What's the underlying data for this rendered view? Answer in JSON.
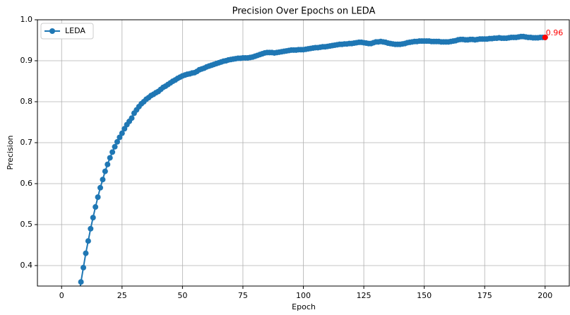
{
  "chart_data": {
    "type": "line",
    "title": "Precision Over Epochs on LEDA",
    "xlabel": "Epoch",
    "ylabel": "Precision",
    "xlim": [
      -10,
      210
    ],
    "ylim": [
      0.35,
      1.0
    ],
    "xticks": [
      0,
      25,
      50,
      75,
      100,
      125,
      150,
      175,
      200
    ],
    "yticks": [
      0.4,
      0.5,
      0.6,
      0.7,
      0.8,
      0.9,
      {
        "value": 1,
        "label": "1.0"
      }
    ],
    "grid": true,
    "legend": "upper left",
    "x": [
      7,
      8,
      9,
      10,
      11,
      12,
      13,
      14,
      15,
      16,
      17,
      18,
      19,
      20,
      21,
      22,
      23,
      24,
      25,
      26,
      27,
      28,
      29,
      30,
      31,
      32,
      33,
      34,
      35,
      36,
      37,
      38,
      39,
      40,
      41,
      42,
      43,
      44,
      45,
      46,
      47,
      48,
      49,
      50,
      51,
      52,
      53,
      54,
      55,
      56,
      57,
      58,
      59,
      60,
      61,
      62,
      63,
      64,
      65,
      66,
      67,
      68,
      69,
      70,
      71,
      72,
      73,
      74,
      75,
      76,
      77,
      78,
      79,
      80,
      81,
      82,
      83,
      84,
      85,
      86,
      87,
      88,
      89,
      90,
      91,
      92,
      93,
      94,
      95,
      96,
      97,
      98,
      99,
      100,
      101,
      102,
      103,
      104,
      105,
      106,
      107,
      108,
      109,
      110,
      111,
      112,
      113,
      114,
      115,
      116,
      117,
      118,
      119,
      120,
      121,
      122,
      123,
      124,
      125,
      126,
      127,
      128,
      129,
      130,
      131,
      132,
      133,
      134,
      135,
      136,
      137,
      138,
      139,
      140,
      141,
      142,
      143,
      144,
      145,
      146,
      147,
      148,
      149,
      150,
      151,
      152,
      153,
      154,
      155,
      156,
      157,
      158,
      159,
      160,
      161,
      162,
      163,
      164,
      165,
      166,
      167,
      168,
      169,
      170,
      171,
      172,
      173,
      174,
      175,
      176,
      177,
      178,
      179,
      180,
      181,
      182,
      183,
      184,
      185,
      186,
      187,
      188,
      189,
      190,
      191,
      192,
      193,
      194,
      195,
      196,
      197,
      198,
      199,
      200
    ],
    "series": [
      {
        "name": "LEDA",
        "color": "#1f77b4",
        "values": [
          0.32,
          0.36,
          0.395,
          0.43,
          0.46,
          0.49,
          0.517,
          0.543,
          0.567,
          0.59,
          0.61,
          0.63,
          0.647,
          0.663,
          0.677,
          0.69,
          0.702,
          0.713,
          0.723,
          0.734,
          0.744,
          0.752,
          0.76,
          0.772,
          0.78,
          0.788,
          0.795,
          0.8,
          0.806,
          0.81,
          0.815,
          0.818,
          0.822,
          0.825,
          0.83,
          0.835,
          0.838,
          0.842,
          0.846,
          0.85,
          0.853,
          0.857,
          0.86,
          0.863,
          0.865,
          0.867,
          0.868,
          0.87,
          0.871,
          0.874,
          0.878,
          0.88,
          0.882,
          0.885,
          0.887,
          0.889,
          0.891,
          0.893,
          0.895,
          0.897,
          0.899,
          0.9,
          0.902,
          0.903,
          0.904,
          0.905,
          0.906,
          0.906,
          0.907,
          0.907,
          0.907,
          0.908,
          0.909,
          0.911,
          0.913,
          0.915,
          0.917,
          0.919,
          0.92,
          0.92,
          0.92,
          0.919,
          0.92,
          0.921,
          0.922,
          0.923,
          0.924,
          0.925,
          0.926,
          0.926,
          0.926,
          0.927,
          0.927,
          0.927,
          0.928,
          0.929,
          0.93,
          0.931,
          0.932,
          0.932,
          0.933,
          0.934,
          0.934,
          0.935,
          0.936,
          0.937,
          0.938,
          0.939,
          0.94,
          0.94,
          0.941,
          0.941,
          0.942,
          0.942,
          0.943,
          0.944,
          0.945,
          0.945,
          0.944,
          0.943,
          0.942,
          0.942,
          0.944,
          0.946,
          0.946,
          0.947,
          0.946,
          0.945,
          0.943,
          0.942,
          0.941,
          0.94,
          0.94,
          0.94,
          0.941,
          0.942,
          0.944,
          0.945,
          0.946,
          0.947,
          0.947,
          0.948,
          0.948,
          0.948,
          0.948,
          0.948,
          0.947,
          0.947,
          0.947,
          0.947,
          0.946,
          0.946,
          0.946,
          0.946,
          0.947,
          0.948,
          0.949,
          0.951,
          0.952,
          0.952,
          0.951,
          0.951,
          0.952,
          0.952,
          0.951,
          0.952,
          0.953,
          0.953,
          0.953,
          0.953,
          0.954,
          0.954,
          0.955,
          0.955,
          0.956,
          0.955,
          0.955,
          0.955,
          0.956,
          0.957,
          0.957,
          0.957,
          0.958,
          0.959,
          0.959,
          0.958,
          0.957,
          0.957,
          0.956,
          0.956,
          0.956,
          0.957,
          0.957,
          0.957
        ]
      }
    ],
    "annotation": {
      "text": "0.96",
      "x": 200,
      "y": 0.957,
      "color": "#ff0000"
    }
  }
}
